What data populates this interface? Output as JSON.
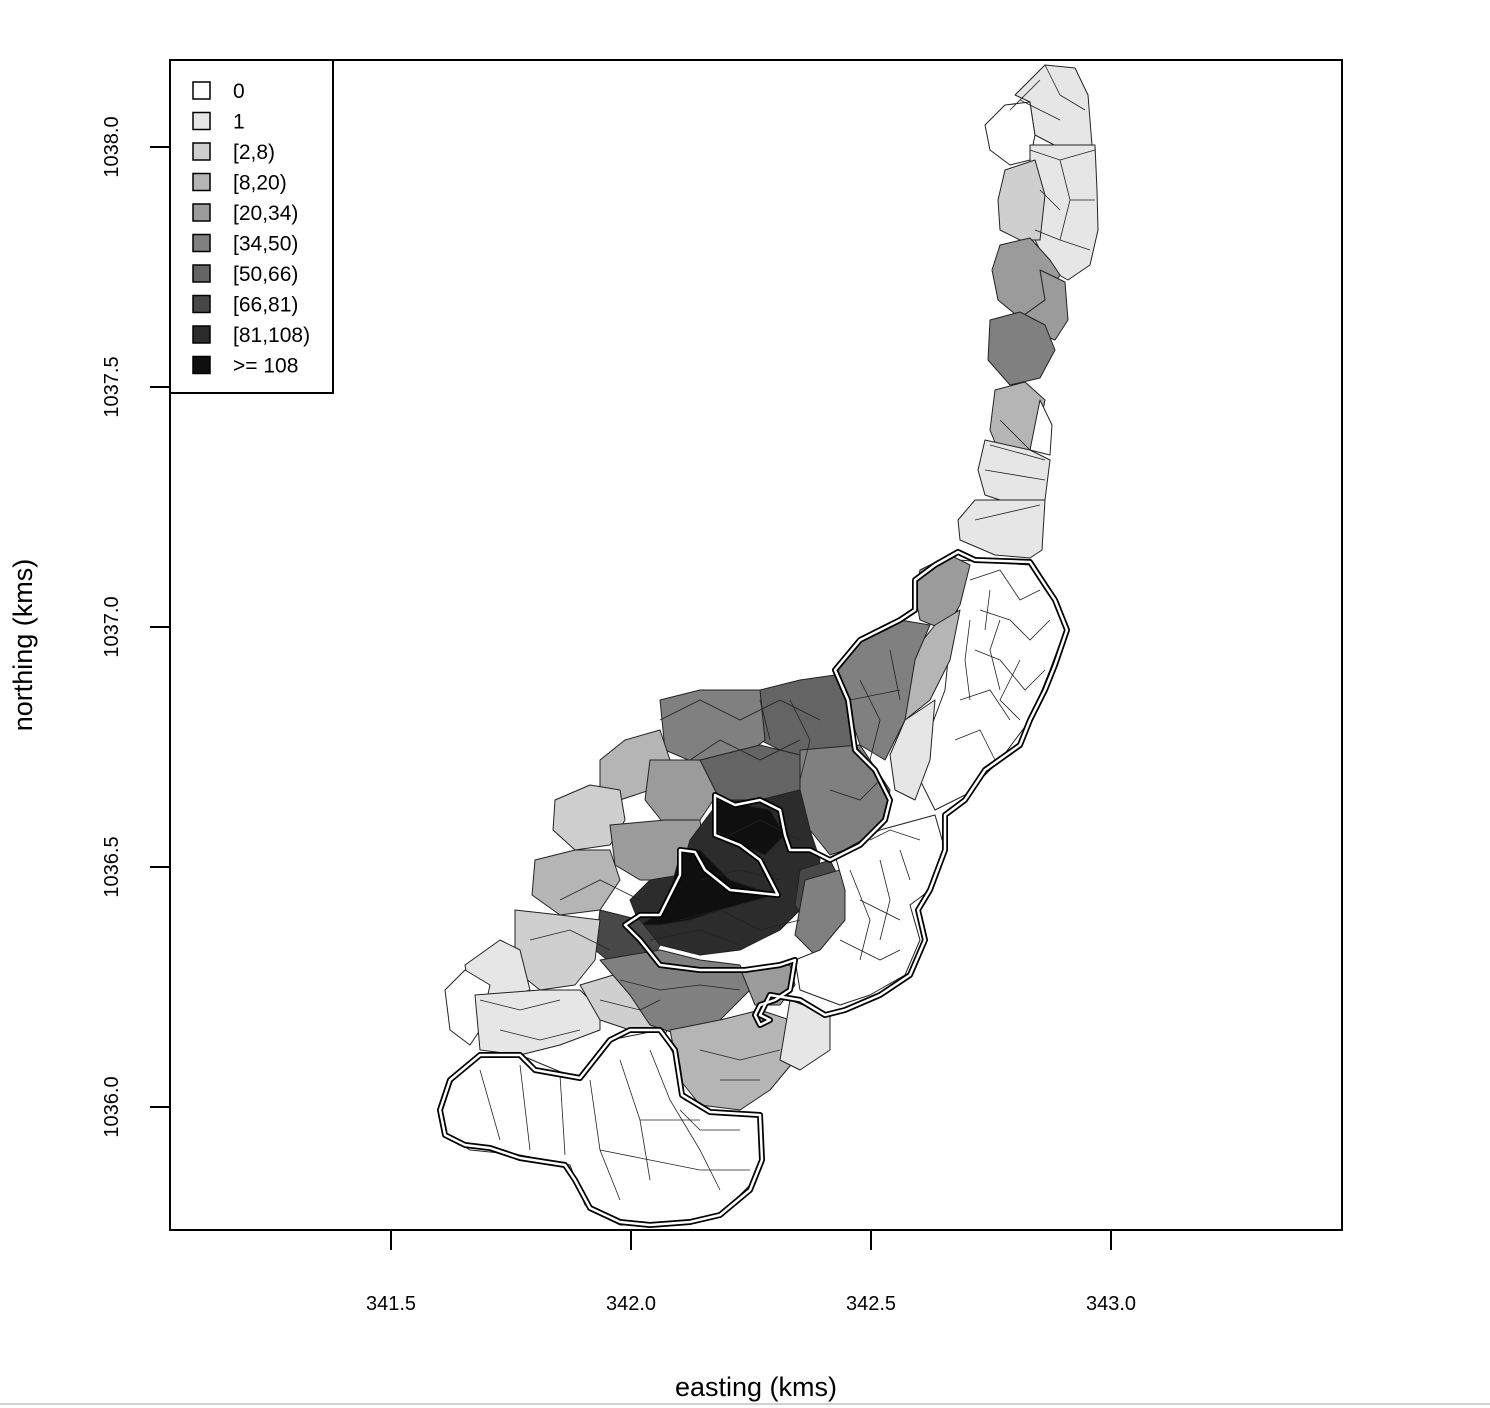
{
  "chart_data": {
    "type": "choropleth",
    "xlabel": "easting (kms)",
    "ylabel": "northing (kms)",
    "xlim": [
      341.04,
      343.48
    ],
    "ylim": [
      1035.74,
      1038.18
    ],
    "x_ticks": [
      341.5,
      342.0,
      342.5,
      343.0
    ],
    "x_tick_labels": [
      "341.5",
      "342.0",
      "342.5",
      "343.0"
    ],
    "y_ticks": [
      1036.0,
      1036.5,
      1037.0,
      1037.5,
      1038.0
    ],
    "y_tick_labels": [
      "1036.0",
      "1036.5",
      "1037.0",
      "1037.5",
      "1038.0"
    ],
    "legend_position": "top-left",
    "legend": [
      {
        "label": "0",
        "color": "#ffffff"
      },
      {
        "label": "1",
        "color": "#e6e6e6"
      },
      {
        "label": "[2,8)",
        "color": "#cfcfcf"
      },
      {
        "label": "[8,20)",
        "color": "#b5b5b5"
      },
      {
        "label": "[20,34)",
        "color": "#9b9b9b"
      },
      {
        "label": "[34,50)",
        "color": "#808080"
      },
      {
        "label": "[50,66)",
        "color": "#646464"
      },
      {
        "label": "[66,81)",
        "color": "#484848"
      },
      {
        "label": "[81,108)",
        "color": "#2c2c2c"
      },
      {
        "label": ">= 108",
        "color": "#0f0f0f"
      }
    ]
  }
}
